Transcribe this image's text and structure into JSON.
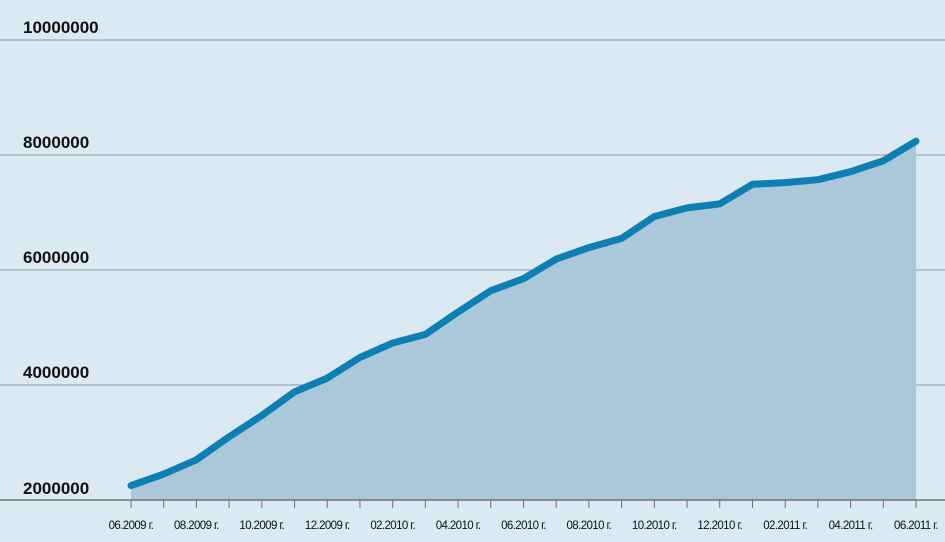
{
  "chart_data": {
    "type": "area",
    "x_labels": [
      "06.2009 г.",
      "08.2009 г.",
      "10.2009 г.",
      "12.2009 г.",
      "02.2010 г.",
      "04.2010 г.",
      "06.2010 г.",
      "08.2010 г.",
      "10.2010 г.",
      "12.2010 г.",
      "02.2011 г.",
      "04.2011 г.",
      "06.2011 г."
    ],
    "x": [
      "06.2009",
      "07.2009",
      "08.2009",
      "09.2009",
      "10.2009",
      "11.2009",
      "12.2009",
      "01.2010",
      "02.2010",
      "03.2010",
      "04.2010",
      "05.2010",
      "06.2010",
      "07.2010",
      "08.2010",
      "09.2010",
      "10.2010",
      "11.2010",
      "12.2010",
      "01.2011",
      "02.2011",
      "03.2011",
      "04.2011",
      "05.2011",
      "06.2011"
    ],
    "values": [
      2250000,
      2450000,
      2700000,
      3100000,
      3470000,
      3880000,
      4120000,
      4480000,
      4730000,
      4880000,
      5270000,
      5640000,
      5850000,
      6190000,
      6390000,
      6550000,
      6930000,
      7080000,
      7150000,
      7490000,
      7520000,
      7570000,
      7710000,
      7900000,
      8240000
    ],
    "y_ticks": [
      "2000000",
      "4000000",
      "6000000",
      "8000000",
      "10000000"
    ],
    "ylim": [
      2000000,
      10000000
    ],
    "grid": true,
    "colors": {
      "background": "#dbe9f2",
      "area": "#aac8da",
      "line": "#0e7fb3",
      "grid": "#8c9aa4",
      "axis": "#707070"
    }
  }
}
